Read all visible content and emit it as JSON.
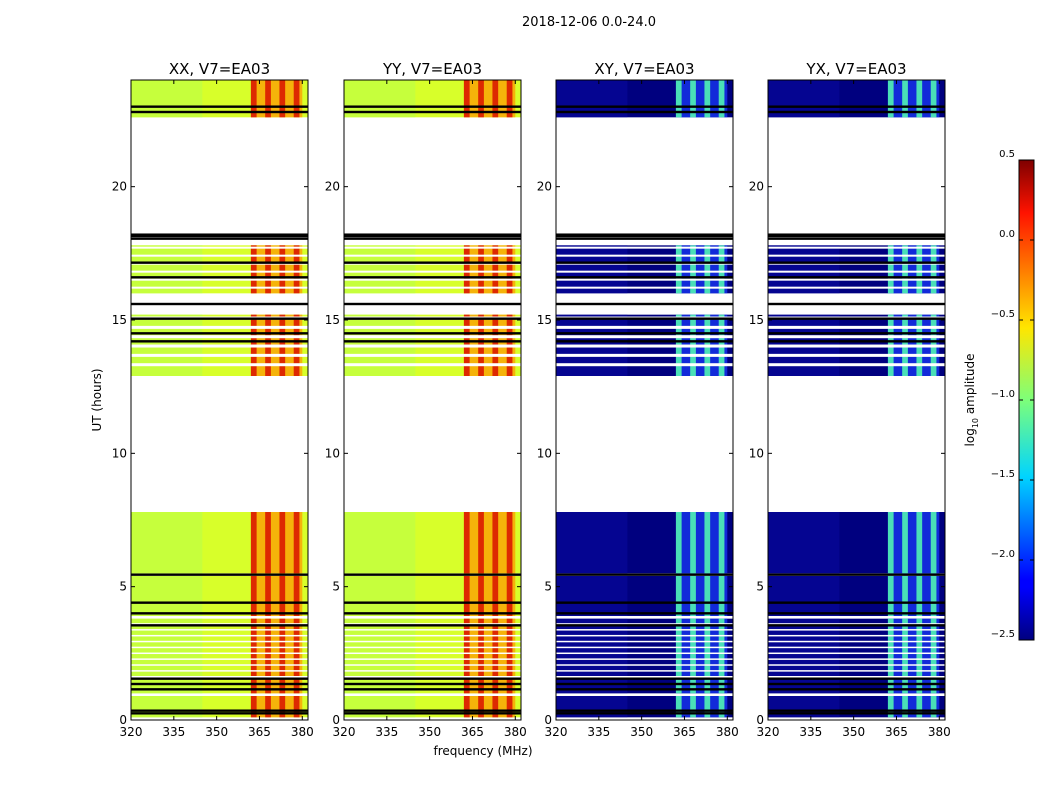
{
  "suptitle": "2018-12-06 0.0-24.0",
  "ylabel": "UT (hours)",
  "xlabel": "frequency (MHz)",
  "chart_data": {
    "type": "heatmap",
    "x_range": [
      320,
      382
    ],
    "y_range": [
      0,
      24
    ],
    "x_ticks": [
      320,
      335,
      350,
      365,
      380
    ],
    "y_ticks": [
      0,
      5,
      10,
      15,
      20
    ],
    "rfi_band_mhz": [
      362,
      380
    ],
    "rfi_columns_mhz": [
      [
        362,
        364
      ],
      [
        367,
        369
      ],
      [
        372,
        374
      ],
      [
        377,
        379
      ]
    ],
    "data_blocks_ut": [
      [
        0.1,
        0.9
      ],
      [
        1.0,
        3.8
      ],
      [
        3.9,
        5.4
      ],
      [
        5.5,
        7.8
      ],
      [
        12.9,
        15.2
      ],
      [
        16.0,
        17.8
      ],
      [
        22.6,
        24.0
      ]
    ],
    "flag_lines_ut": [
      0.25,
      0.35,
      1.15,
      1.35,
      1.55,
      3.55,
      4.0,
      4.4,
      5.45,
      14.2,
      14.5,
      15.05,
      15.6,
      16.6,
      17.15,
      18.05,
      18.15,
      18.2,
      22.8,
      23.0
    ],
    "panels": [
      {
        "title": "XX, V7=EA03",
        "kind": "parallel"
      },
      {
        "title": "YY, V7=EA03",
        "kind": "parallel"
      },
      {
        "title": "XY, V7=EA03",
        "kind": "cross"
      },
      {
        "title": "YX, V7=EA03",
        "kind": "cross"
      }
    ],
    "colorbar": {
      "label": "log",
      "label_sub": "10",
      "label_rest": " amplitude",
      "range": [
        -2.5,
        0.5
      ],
      "ticks": [
        "0.5",
        "0.0",
        "−0.5",
        "−1.0",
        "−1.5",
        "−2.0",
        "−2.5"
      ],
      "tick_values": [
        0.5,
        0.0,
        -0.5,
        -1.0,
        -1.5,
        -2.0,
        -2.5
      ],
      "colormap": "jet"
    }
  }
}
